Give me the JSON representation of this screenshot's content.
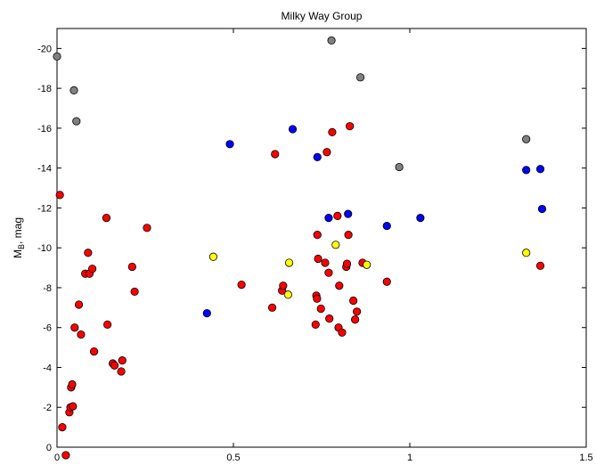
{
  "chart_data": {
    "type": "scatter",
    "title": "Milky Way Group",
    "xlabel": "",
    "ylabel": "M",
    "ylabel_sub": "B",
    "ylabel_suffix": ", mag",
    "xlim": [
      0,
      1.5
    ],
    "ylim": [
      0,
      -21
    ],
    "y_reversed": true,
    "grid": false,
    "xticks": [
      0,
      0.5,
      1,
      1.5
    ],
    "xtick_labels": [
      "0",
      "0.5",
      "1",
      "1.5"
    ],
    "yticks": [
      0,
      -2,
      -4,
      -6,
      -8,
      -10,
      -12,
      -14,
      -16,
      -18,
      -20
    ],
    "ytick_labels": [
      "0",
      "-2",
      "-4",
      "-6",
      "-8",
      "-10",
      "-12",
      "-14",
      "-16",
      "-18",
      "-20"
    ],
    "series": [
      {
        "color": "#808080",
        "points": [
          [
            0.0,
            -19.6
          ],
          [
            0.048,
            -17.9
          ],
          [
            0.055,
            -16.35
          ],
          [
            0.778,
            -20.4
          ],
          [
            0.86,
            -18.55
          ],
          [
            0.97,
            -14.05
          ],
          [
            1.33,
            -15.45
          ]
        ]
      },
      {
        "color": "#0000ff",
        "points": [
          [
            0.425,
            -6.72
          ],
          [
            0.49,
            -15.2
          ],
          [
            0.668,
            -15.95
          ],
          [
            0.738,
            -14.55
          ],
          [
            0.77,
            -11.5
          ],
          [
            0.825,
            -11.7
          ],
          [
            0.935,
            -11.1
          ],
          [
            1.03,
            -11.5
          ],
          [
            1.33,
            -13.9
          ],
          [
            1.37,
            -13.95
          ],
          [
            1.375,
            -11.95
          ]
        ]
      },
      {
        "color": "#ff0000",
        "points": [
          [
            0.008,
            -12.65
          ],
          [
            0.015,
            -1.0
          ],
          [
            0.025,
            0.4
          ],
          [
            0.035,
            -1.75
          ],
          [
            0.038,
            -2.0
          ],
          [
            0.04,
            -3.0
          ],
          [
            0.043,
            -3.15
          ],
          [
            0.045,
            -2.05
          ],
          [
            0.05,
            -6.0
          ],
          [
            0.062,
            -7.15
          ],
          [
            0.068,
            -5.65
          ],
          [
            0.08,
            -8.7
          ],
          [
            0.088,
            -9.75
          ],
          [
            0.092,
            -8.7
          ],
          [
            0.1,
            -8.95
          ],
          [
            0.105,
            -4.8
          ],
          [
            0.14,
            -11.5
          ],
          [
            0.143,
            -6.15
          ],
          [
            0.158,
            -4.2
          ],
          [
            0.163,
            -4.1
          ],
          [
            0.182,
            -3.8
          ],
          [
            0.185,
            -4.35
          ],
          [
            0.213,
            -9.05
          ],
          [
            0.22,
            -7.8
          ],
          [
            0.255,
            -11.0
          ],
          [
            0.523,
            -8.15
          ],
          [
            0.61,
            -7.0
          ],
          [
            0.618,
            -14.7
          ],
          [
            0.638,
            -7.85
          ],
          [
            0.641,
            -8.1
          ],
          [
            0.733,
            -6.15
          ],
          [
            0.735,
            -7.6
          ],
          [
            0.737,
            -7.45
          ],
          [
            0.738,
            -10.65
          ],
          [
            0.74,
            -9.45
          ],
          [
            0.748,
            -6.95
          ],
          [
            0.76,
            -9.25
          ],
          [
            0.77,
            -8.75
          ],
          [
            0.772,
            -6.45
          ],
          [
            0.765,
            -14.8
          ],
          [
            0.78,
            -15.8
          ],
          [
            0.795,
            -11.6
          ],
          [
            0.8,
            -8.1
          ],
          [
            0.798,
            -6.0
          ],
          [
            0.808,
            -5.75
          ],
          [
            0.82,
            -9.05
          ],
          [
            0.822,
            -9.2
          ],
          [
            0.826,
            -10.65
          ],
          [
            0.83,
            -16.1
          ],
          [
            0.84,
            -7.35
          ],
          [
            0.845,
            -6.4
          ],
          [
            0.85,
            -6.8
          ],
          [
            0.866,
            -9.25
          ],
          [
            0.935,
            -8.3
          ],
          [
            1.37,
            -9.1
          ]
        ]
      },
      {
        "color": "#ffff00",
        "points": [
          [
            0.443,
            -9.55
          ],
          [
            0.655,
            -7.65
          ],
          [
            0.658,
            -9.25
          ],
          [
            0.79,
            -10.15
          ],
          [
            0.878,
            -9.15
          ],
          [
            1.33,
            -9.75
          ]
        ]
      }
    ]
  }
}
